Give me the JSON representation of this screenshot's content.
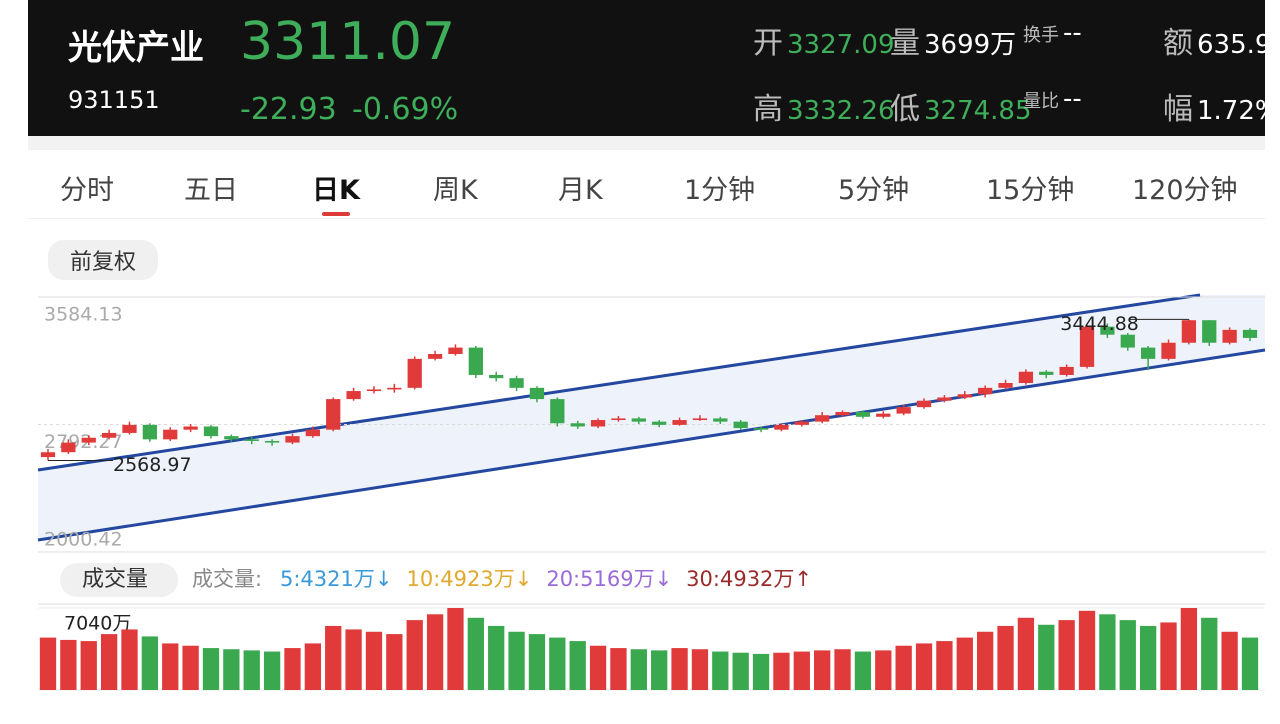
{
  "header": {
    "name": "光伏产业",
    "price": "3311.07",
    "code": "931151",
    "change": "-22.93",
    "change_pct": "-0.69%",
    "stats": [
      {
        "label": "开",
        "value": "3327.09"
      },
      {
        "label": "量",
        "value": "3699万"
      },
      {
        "label": "换手",
        "value": "--"
      },
      {
        "label": "额",
        "value": "635.9"
      },
      {
        "label": "高",
        "value": "3332.26"
      },
      {
        "label": "低",
        "value": "3274.85"
      },
      {
        "label": "量比",
        "value": "--"
      },
      {
        "label": "幅",
        "value": "1.72%"
      }
    ]
  },
  "tabs": [
    "分时",
    "五日",
    "日K",
    "周K",
    "月K",
    "1分钟",
    "5分钟",
    "15分钟",
    "120分钟"
  ],
  "adjust": "前复权",
  "chart_data": [
    {
      "type": "candlestick",
      "ylim": [
        2000.42,
        3584.13
      ],
      "yticks": [
        3584.13,
        2792.27,
        2000.42
      ],
      "up_color": "#e03a3a",
      "down_color": "#3aa84f",
      "annotations": [
        {
          "text": "3444.88",
          "value": 3444.88
        },
        {
          "text": "2568.97",
          "value": 2568.97
        }
      ],
      "open": [
        2590,
        2620,
        2680,
        2710,
        2740,
        2790,
        2700,
        2760,
        2780,
        2720,
        2700,
        2690,
        2680,
        2720,
        2760,
        2950,
        3000,
        3010,
        3020,
        3200,
        3230,
        3270,
        3100,
        3080,
        3020,
        2950,
        2800,
        2780,
        2820,
        2830,
        2810,
        2790,
        2820,
        2830,
        2810,
        2770,
        2760,
        2790,
        2810,
        2850,
        2870,
        2840,
        2860,
        2900,
        2940,
        2960,
        2980,
        3020,
        3050,
        3120,
        3100,
        3150,
        3400,
        3350,
        3270,
        3200,
        3300,
        3440,
        3300,
        3380
      ],
      "close": [
        2620,
        2680,
        2710,
        2740,
        2790,
        2700,
        2760,
        2780,
        2720,
        2700,
        2690,
        2680,
        2720,
        2760,
        2950,
        3000,
        3010,
        3020,
        3200,
        3230,
        3270,
        3100,
        3080,
        3020,
        2950,
        2800,
        2780,
        2820,
        2830,
        2810,
        2790,
        2820,
        2830,
        2810,
        2770,
        2760,
        2790,
        2810,
        2850,
        2870,
        2840,
        2860,
        2900,
        2940,
        2960,
        2980,
        3020,
        3050,
        3120,
        3100,
        3150,
        3400,
        3350,
        3270,
        3200,
        3300,
        3440,
        3300,
        3380,
        3330
      ],
      "high": [
        2640,
        2700,
        2725,
        2760,
        2810,
        2800,
        2775,
        2795,
        2790,
        2730,
        2715,
        2700,
        2735,
        2780,
        2960,
        3020,
        3030,
        3045,
        3215,
        3250,
        3290,
        3280,
        3120,
        3095,
        3030,
        2960,
        2815,
        2830,
        2845,
        2840,
        2820,
        2835,
        2850,
        2840,
        2820,
        2780,
        2800,
        2820,
        2870,
        2880,
        2880,
        2875,
        2915,
        2955,
        2975,
        3000,
        3035,
        3070,
        3135,
        3130,
        3165,
        3410,
        3420,
        3360,
        3280,
        3320,
        3444.88,
        3440,
        3395,
        3390
      ],
      "low": [
        2568.97,
        2610,
        2665,
        2700,
        2730,
        2685,
        2690,
        2745,
        2705,
        2685,
        2670,
        2660,
        2670,
        2710,
        2750,
        2940,
        2985,
        2990,
        3010,
        3190,
        3220,
        3080,
        3060,
        3000,
        2930,
        2780,
        2765,
        2770,
        2810,
        2795,
        2775,
        2785,
        2815,
        2795,
        2760,
        2745,
        2750,
        2780,
        2800,
        2840,
        2830,
        2830,
        2850,
        2890,
        2930,
        2950,
        2960,
        3010,
        3040,
        3080,
        3090,
        3140,
        3330,
        3250,
        3130,
        3190,
        3290,
        3280,
        3290,
        3310
      ]
    },
    {
      "type": "bar",
      "title": "成交量",
      "legend_title": "成交量:",
      "ma_legend": [
        {
          "text": "5:4321万↓",
          "color": "#3a9ad9"
        },
        {
          "text": "10:4923万↓",
          "color": "#e0a82e"
        },
        {
          "text": "20:5169万↓",
          "color": "#9a6ad8"
        },
        {
          "text": "30:4932万↑",
          "color": "#9b2a2a"
        }
      ],
      "ylim": [
        0,
        7040
      ],
      "yticks": [
        {
          "value": 7040,
          "label": "7040万"
        },
        0
      ],
      "values": [
        4500,
        4300,
        4200,
        4800,
        5200,
        4600,
        4000,
        3800,
        3600,
        3500,
        3400,
        3300,
        3600,
        4000,
        5500,
        5200,
        5000,
        4800,
        6000,
        6500,
        7040,
        6200,
        5500,
        5000,
        4800,
        4500,
        4200,
        3800,
        3600,
        3500,
        3400,
        3600,
        3500,
        3300,
        3200,
        3100,
        3200,
        3300,
        3400,
        3500,
        3300,
        3400,
        3800,
        4000,
        4200,
        4500,
        5000,
        5500,
        6200,
        5600,
        6000,
        6800,
        6500,
        6000,
        5500,
        5800,
        7040,
        6200,
        5000,
        4500
      ]
    }
  ]
}
